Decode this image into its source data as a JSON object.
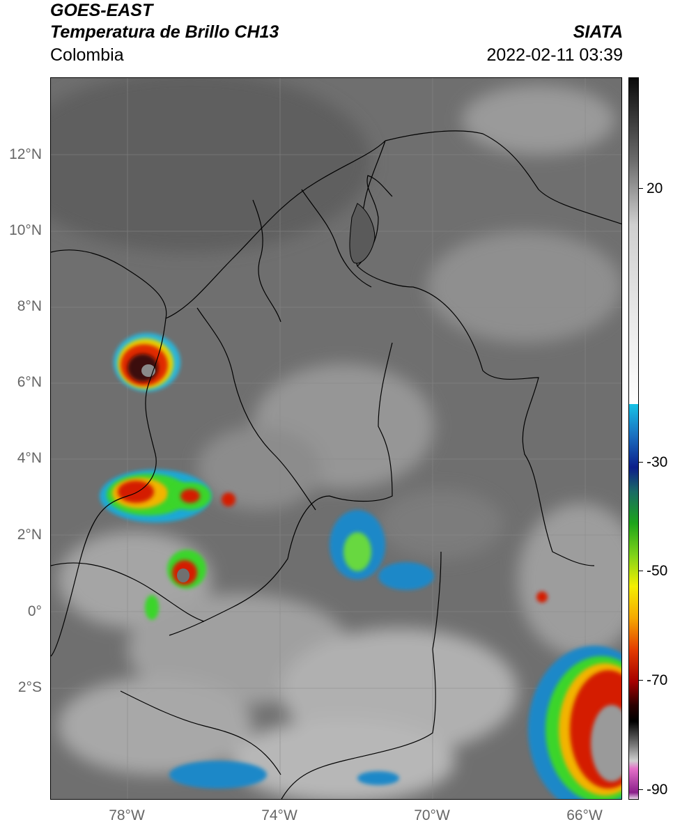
{
  "header": {
    "line1": "GOES-EAST",
    "line2": "Temperatura de Brillo CH13",
    "line3": "Colombia",
    "source": "SIATA",
    "datetime": "2022-02-11 03:39"
  },
  "map": {
    "lat_labels": [
      "12°N",
      "10°N",
      "8°N",
      "6°N",
      "4°N",
      "2°N",
      "0°",
      "2°S"
    ],
    "lon_labels": [
      "78°W",
      "74°W",
      "70°W",
      "66°W"
    ],
    "background_color": "#6d6d6d",
    "border_color": "#000000"
  },
  "colorbar": {
    "labels": [
      "20",
      "-30",
      "-50",
      "-70",
      "-90"
    ]
  }
}
